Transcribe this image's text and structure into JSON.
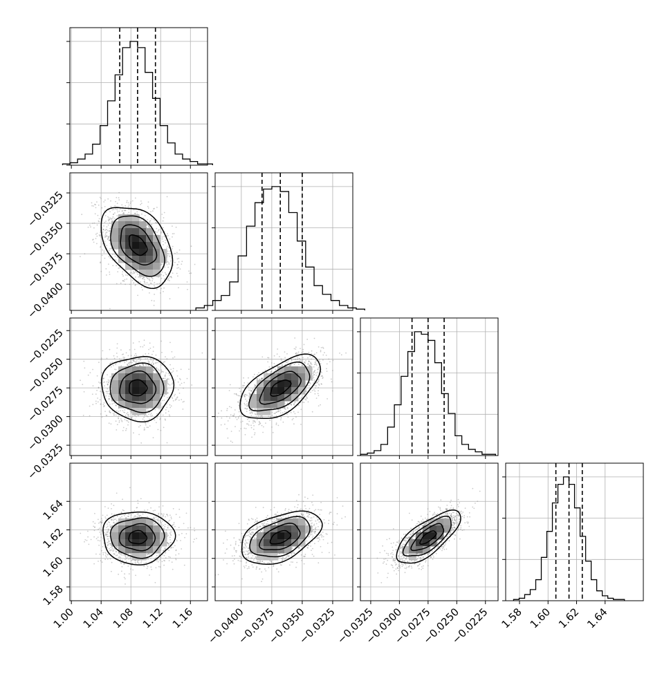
{
  "chart_data": {
    "type": "corner",
    "n_params": 4,
    "grid": true,
    "colors": {
      "line": "#000000",
      "grid": "#b0b0b0",
      "points": "#8c8c8c",
      "density_max": "#000000"
    },
    "params": [
      {
        "index": 0,
        "range": [
          0.998,
          1.183
        ],
        "ticks": [
          1.0,
          1.04,
          1.08,
          1.12,
          1.16
        ],
        "tick_labels": [
          "1.00",
          "1.04",
          "1.08",
          "1.12",
          "1.16"
        ],
        "quantiles": [
          1.065,
          1.089,
          1.113
        ],
        "hist_bins": 20,
        "hist_counts": [
          1,
          2,
          5,
          9,
          17,
          32,
          52,
          73,
          95,
          100,
          95,
          75,
          54,
          32,
          18,
          9,
          5,
          3,
          1,
          1
        ]
      },
      {
        "index": 1,
        "range": [
          -0.04215,
          -0.03085
        ],
        "ticks": [
          -0.04,
          -0.0375,
          -0.035,
          -0.0325
        ],
        "tick_labels": [
          "−0.0400",
          "−0.0375",
          "−0.0350",
          "−0.0325"
        ],
        "quantiles": [
          -0.0383,
          -0.0368,
          -0.035
        ],
        "hist_bins": 20,
        "hist_counts": [
          2,
          4,
          8,
          12,
          23,
          44,
          68,
          87,
          98,
          100,
          96,
          79,
          56,
          35,
          20,
          13,
          8,
          4,
          2,
          1
        ]
      },
      {
        "index": 2,
        "range": [
          -0.0334,
          -0.0214
        ],
        "ticks": [
          -0.0325,
          -0.03,
          -0.0275,
          -0.025,
          -0.0225
        ],
        "tick_labels": [
          "−0.0325",
          "−0.0300",
          "−0.0275",
          "−0.0250",
          "−0.0225"
        ],
        "quantiles": [
          -0.0289,
          -0.0275,
          -0.0261
        ],
        "hist_bins": 20,
        "hist_counts": [
          1,
          2,
          4,
          9,
          23,
          41,
          64,
          84,
          100,
          98,
          93,
          75,
          50,
          34,
          16,
          9,
          5,
          3,
          1,
          1
        ]
      },
      {
        "index": 3,
        "range": [
          1.5703,
          1.6668
        ],
        "ticks": [
          1.58,
          1.6,
          1.62,
          1.64
        ],
        "tick_labels": [
          "1.58",
          "1.60",
          "1.62",
          "1.64"
        ],
        "quantiles": [
          1.6055,
          1.6147,
          1.624
        ],
        "hist_bins": 20,
        "hist_counts": [
          1,
          2,
          5,
          9,
          17,
          35,
          56,
          79,
          94,
          100,
          94,
          75,
          52,
          32,
          17,
          8,
          4,
          2,
          1,
          1
        ]
      }
    ],
    "left_axis_ticks": [
      {
        "row": 1,
        "ticks": [
          -0.0325,
          -0.035,
          -0.0375,
          -0.04
        ],
        "tick_labels": [
          "−0.0325",
          "−0.0350",
          "−0.0375",
          "−0.0400"
        ]
      },
      {
        "row": 2,
        "ticks": [
          -0.0225,
          -0.025,
          -0.0275,
          -0.03,
          -0.0325
        ],
        "tick_labels": [
          "−0.0225",
          "−0.0250",
          "−0.0275",
          "−0.0300",
          "−0.0325"
        ]
      },
      {
        "row": 3,
        "ticks": [
          1.64,
          1.62,
          1.6,
          1.58
        ],
        "tick_labels": [
          "1.64",
          "1.62",
          "1.60",
          "1.58"
        ]
      }
    ],
    "pair_panels": [
      {
        "row": 1,
        "col": 0,
        "correlation": -0.42
      },
      {
        "row": 2,
        "col": 0,
        "correlation": 0.0
      },
      {
        "row": 2,
        "col": 1,
        "correlation": 0.58
      },
      {
        "row": 3,
        "col": 0,
        "correlation": 0.0
      },
      {
        "row": 3,
        "col": 1,
        "correlation": 0.45
      },
      {
        "row": 3,
        "col": 2,
        "correlation": 0.72
      }
    ],
    "contour_sigma_levels": [
      0.5,
      1.0,
      1.5,
      2.0
    ]
  }
}
